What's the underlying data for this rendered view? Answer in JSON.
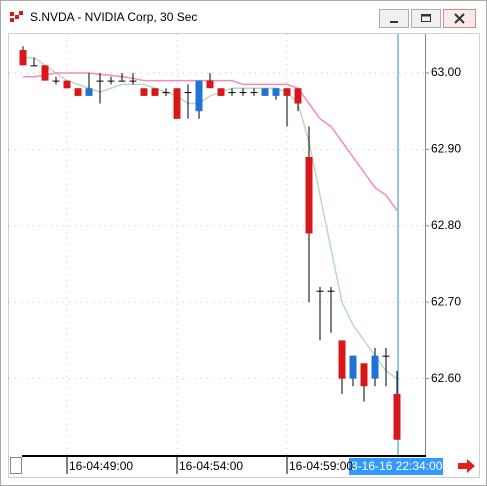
{
  "window": {
    "title": "S.NVDA - NVIDIA Corp, 30 Sec"
  },
  "chart_data": {
    "type": "candlestick",
    "categories": [
      null,
      null,
      null,
      null,
      "16-04:49:00",
      null,
      null,
      null,
      null,
      null,
      null,
      null,
      null,
      null,
      "16-04:54:00",
      null,
      null,
      null,
      null,
      null,
      null,
      null,
      null,
      null,
      "16-04:59:00",
      null,
      null,
      null,
      null,
      null,
      null,
      null,
      null,
      null,
      null
    ],
    "open": [
      63.03,
      63.01,
      63.01,
      62.99,
      62.99,
      62.98,
      62.97,
      62.99,
      62.99,
      62.99,
      62.99,
      62.98,
      62.98,
      62.975,
      62.98,
      62.975,
      62.95,
      62.99,
      62.98,
      62.975,
      62.975,
      62.975,
      62.97,
      62.97,
      62.98,
      62.98,
      62.89,
      62.715,
      62.715,
      62.65,
      62.6,
      62.62,
      62.6,
      62.63,
      62.58
    ],
    "high": [
      63.035,
      63.02,
      63.01,
      62.995,
      62.99,
      62.98,
      63.0,
      63.0,
      62.995,
      63.0,
      63.0,
      62.98,
      62.98,
      62.98,
      62.98,
      62.985,
      62.99,
      63.0,
      62.98,
      62.98,
      62.98,
      62.98,
      62.98,
      62.98,
      62.98,
      62.98,
      62.93,
      62.72,
      62.72,
      62.65,
      62.63,
      62.62,
      62.64,
      62.64,
      62.61
    ],
    "low": [
      63.01,
      63.01,
      62.99,
      62.985,
      62.98,
      62.97,
      62.97,
      62.96,
      62.985,
      62.99,
      62.985,
      62.97,
      62.97,
      62.97,
      62.94,
      62.94,
      62.94,
      62.98,
      62.97,
      62.97,
      62.97,
      62.97,
      62.97,
      62.965,
      62.93,
      62.95,
      62.7,
      62.65,
      62.66,
      62.58,
      62.59,
      62.57,
      62.59,
      62.59,
      62.52
    ],
    "close": [
      63.01,
      63.01,
      62.99,
      62.99,
      62.98,
      62.97,
      62.98,
      62.99,
      62.99,
      62.99,
      62.99,
      62.97,
      62.97,
      62.975,
      62.94,
      62.975,
      62.99,
      62.98,
      62.97,
      62.975,
      62.975,
      62.975,
      62.98,
      62.98,
      62.97,
      62.96,
      62.79,
      62.715,
      62.715,
      62.6,
      62.63,
      62.59,
      62.63,
      62.63,
      62.52
    ],
    "up_color": "#1e74d6",
    "down_color": "#d81818",
    "doji_color": "#000000",
    "overlays": [
      {
        "color": "#b9dcb9",
        "values": [
          63.02,
          63.02,
          63.01,
          63.0,
          62.99,
          62.985,
          62.98,
          62.975,
          62.98,
          62.985,
          62.985,
          62.985,
          62.98,
          62.975,
          62.97,
          62.96,
          62.96,
          62.97,
          62.975,
          62.98,
          62.98,
          62.98,
          62.98,
          62.98,
          62.975,
          62.96,
          62.91,
          62.84,
          62.77,
          62.7,
          62.67,
          62.65,
          62.63,
          62.61,
          62.6
        ]
      },
      {
        "color": "#f08cc0",
        "values": [
          62.995,
          62.995,
          62.997,
          63.0,
          63.0,
          63.0,
          63.0,
          62.998,
          62.997,
          62.995,
          62.993,
          62.99,
          62.99,
          62.99,
          62.99,
          62.99,
          62.99,
          62.99,
          62.99,
          62.99,
          62.985,
          62.985,
          62.985,
          62.985,
          62.985,
          62.98,
          62.96,
          62.94,
          62.93,
          62.91,
          62.89,
          62.87,
          62.85,
          62.84,
          62.82
        ]
      }
    ],
    "ylim": [
      62.5,
      63.051
    ],
    "yticks": [
      {
        "value": 62.6,
        "label": "62.60"
      },
      {
        "value": 62.7,
        "label": "62.70"
      },
      {
        "value": 62.8,
        "label": "62.80"
      },
      {
        "value": 62.9,
        "label": "62.90"
      },
      {
        "value": 63.0,
        "label": "63.00"
      }
    ],
    "grid": true,
    "cursor_label": "8-16-16 22:34:00"
  }
}
